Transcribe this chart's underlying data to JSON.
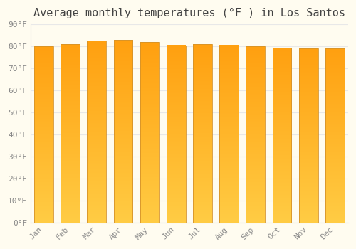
{
  "title": "Average monthly temperatures (°F ) in Los Santos",
  "months": [
    "Jan",
    "Feb",
    "Mar",
    "Apr",
    "May",
    "Jun",
    "Jul",
    "Aug",
    "Sep",
    "Oct",
    "Nov",
    "Dec"
  ],
  "values": [
    80,
    81,
    82.5,
    83,
    82,
    80.5,
    81,
    80.5,
    80,
    79.5,
    79,
    79
  ],
  "ylim": [
    0,
    90
  ],
  "yticks": [
    0,
    10,
    20,
    30,
    40,
    50,
    60,
    70,
    80,
    90
  ],
  "bar_color": "#FFC033",
  "bar_edge_color": "#D4922A",
  "background_color": "#FFFCF0",
  "grid_color": "#E8E8E8",
  "title_fontsize": 11,
  "tick_fontsize": 8,
  "font_family": "monospace",
  "title_color": "#444444",
  "tick_color": "#888888"
}
